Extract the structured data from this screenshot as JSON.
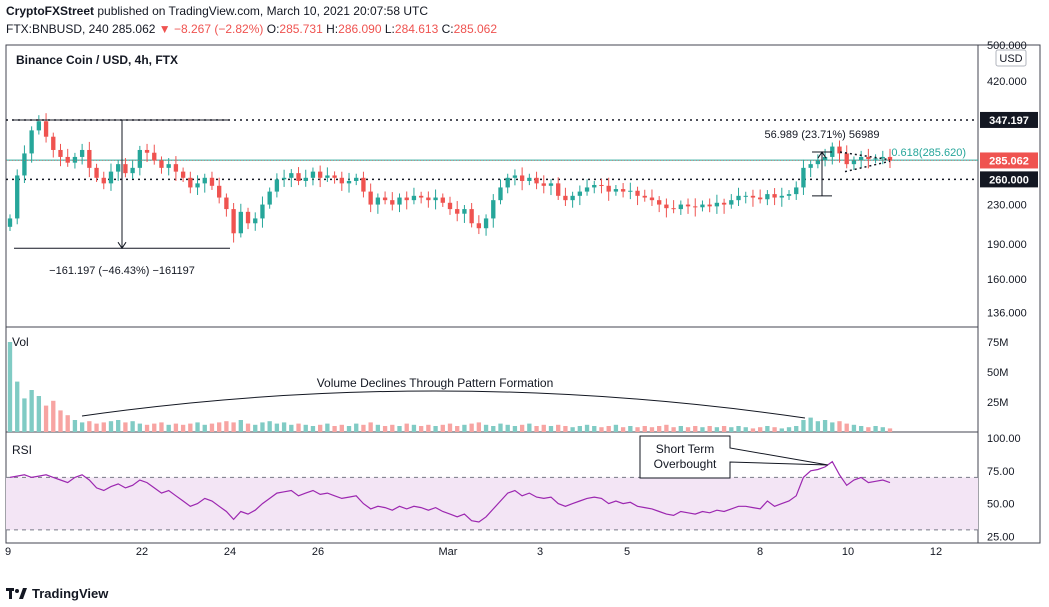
{
  "header": {
    "publisher": "CryptoFXStreet",
    "published_text": "published on TradingView.com, March 10, 2021 20:07:58 UTC",
    "symbol": "FTX:BNBUSD, 240",
    "last": "285.062",
    "change": "▼ −8.267 (−2.82%)",
    "o_label": "O:",
    "o": "285.731",
    "h_label": "H:",
    "h": "286.090",
    "l_label": "L:",
    "l": "284.613",
    "c_label": "C:",
    "c": "285.062"
  },
  "chart_title": "Binance Coin / USD, 4h, FTX",
  "currency": "USD",
  "footer_brand": "TradingView",
  "colors": {
    "up": "#26a69a",
    "down": "#ef5350",
    "rsi": "#9c27b0",
    "fib": "#26a69a",
    "price_badge": "#ef5350",
    "level_badge": "#131722"
  },
  "chart_data": {
    "type": "candlestick",
    "price_axis": {
      "ticks": [
        "500.000",
        "420.000",
        "347.197",
        "285.062",
        "260.000",
        "230.000",
        "190.000",
        "160.000",
        "136.000"
      ],
      "log_scale": true,
      "ylim": [
        128,
        500
      ]
    },
    "x_axis": {
      "ticks": [
        "9",
        "22",
        "24",
        "26",
        "Mar",
        "3",
        "5",
        "8",
        "10",
        "12"
      ]
    },
    "candles_close": [
      215,
      265,
      295,
      330,
      345,
      320,
      300,
      290,
      282,
      290,
      300,
      275,
      262,
      255,
      270,
      280,
      268,
      275,
      300,
      296,
      285,
      275,
      280,
      270,
      262,
      250,
      255,
      262,
      252,
      238,
      225,
      200,
      222,
      210,
      215,
      230,
      245,
      260,
      262,
      268,
      258,
      262,
      270,
      262,
      265,
      262,
      255,
      258,
      262,
      245,
      230,
      238,
      235,
      230,
      238,
      235,
      240,
      238,
      235,
      238,
      232,
      225,
      220,
      225,
      210,
      205,
      215,
      235,
      250,
      262,
      265,
      258,
      262,
      255,
      252,
      255,
      240,
      235,
      240,
      245,
      250,
      253,
      252,
      245,
      248,
      245,
      246,
      240,
      238,
      235,
      230,
      226,
      225,
      230,
      228,
      227,
      230,
      228,
      232,
      230,
      235,
      240,
      240,
      238,
      236,
      242,
      238,
      240,
      242,
      250,
      275,
      280,
      285,
      290,
      305,
      295,
      280,
      285,
      290,
      287,
      288,
      290,
      285
    ],
    "levels": [
      {
        "name": "resistance",
        "value": 347.197,
        "label": "347.197"
      },
      {
        "name": "support",
        "value": 260.0,
        "label": "260.000"
      },
      {
        "name": "fib",
        "value": 285.62,
        "label": "0.618(285.620)"
      }
    ],
    "last_price": {
      "value": 285.062,
      "label": "285.062"
    },
    "measure_left": {
      "label": "−161.197 (−46.43%) −161197",
      "high": 347.197,
      "low": 186.0
    },
    "measure_right": {
      "label": "56.989 (23.71%) 56989",
      "high": 297.0,
      "low": 240.0
    },
    "volume": {
      "label": "Vol",
      "ticks": [
        "75M",
        "50M",
        "25M"
      ],
      "ylim": [
        0,
        80
      ],
      "values": [
        75,
        42,
        28,
        35,
        30,
        22,
        26,
        18,
        14,
        10,
        8,
        9,
        7,
        8,
        9,
        10,
        8,
        9,
        7,
        6,
        7,
        8,
        6,
        7,
        6,
        7,
        8,
        6,
        7,
        8,
        9,
        8,
        10,
        7,
        6,
        8,
        9,
        7,
        8,
        6,
        7,
        6,
        5,
        6,
        7,
        5,
        6,
        5,
        7,
        6,
        8,
        6,
        5,
        6,
        5,
        7,
        6,
        5,
        6,
        5,
        6,
        7,
        5,
        6,
        7,
        8,
        6,
        5,
        7,
        6,
        5,
        6,
        7,
        5,
        6,
        5,
        6,
        5,
        4,
        5,
        6,
        5,
        4,
        5,
        6,
        4,
        5,
        4,
        5,
        4,
        5,
        6,
        4,
        5,
        4,
        5,
        4,
        5,
        4,
        5,
        4,
        5,
        4,
        3,
        4,
        5,
        4,
        3,
        4,
        5,
        10,
        12,
        9,
        10,
        8,
        9,
        7,
        6,
        5,
        4,
        5,
        4,
        3
      ],
      "annotation": "Volume Declines Through Pattern Formation"
    },
    "rsi": {
      "label": "RSI",
      "ticks": [
        "100.00",
        "75.00",
        "50.00",
        "25.00"
      ],
      "ylim": [
        20,
        100
      ],
      "band": [
        30,
        70
      ],
      "values": [
        70,
        71,
        72,
        70,
        71,
        72,
        70,
        68,
        66,
        70,
        72,
        68,
        62,
        60,
        63,
        65,
        62,
        64,
        68,
        66,
        62,
        58,
        60,
        56,
        52,
        48,
        50,
        54,
        52,
        48,
        44,
        38,
        44,
        42,
        45,
        50,
        54,
        58,
        59,
        60,
        56,
        58,
        60,
        57,
        58,
        56,
        54,
        55,
        56,
        50,
        46,
        48,
        47,
        45,
        48,
        46,
        48,
        47,
        45,
        47,
        44,
        42,
        40,
        42,
        37,
        36,
        40,
        46,
        52,
        58,
        60,
        56,
        58,
        55,
        54,
        55,
        50,
        48,
        50,
        52,
        54,
        55,
        54,
        50,
        52,
        50,
        51,
        48,
        47,
        46,
        44,
        42,
        41,
        44,
        43,
        42,
        44,
        43,
        45,
        44,
        46,
        48,
        48,
        47,
        46,
        52,
        48,
        50,
        52,
        56,
        70,
        75,
        76,
        78,
        82,
        72,
        64,
        68,
        70,
        66,
        67,
        68,
        66
      ],
      "annotation_line1": "Short Term",
      "annotation_line2": "Overbought"
    }
  }
}
